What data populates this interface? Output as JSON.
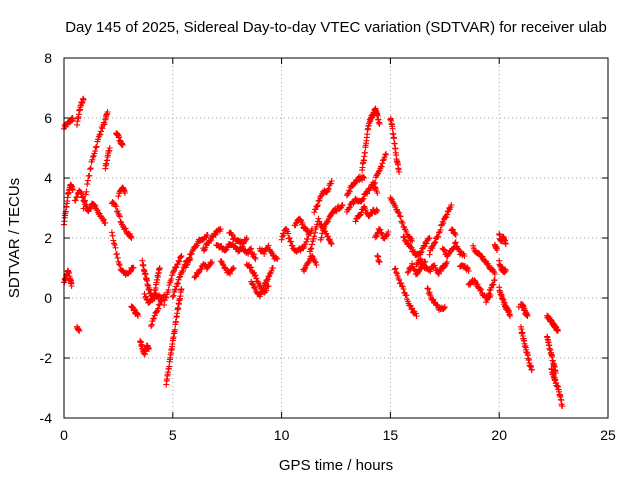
{
  "chart_data": {
    "type": "scatter",
    "title": "Day 145 of 2025, Sidereal Day-to-day VTEC variation (SDTVAR) for receiver ulab",
    "xlabel": "GPS time / hours",
    "ylabel": "SDTVAR / TECUs",
    "xlim": [
      0,
      25
    ],
    "ylim": [
      -4,
      8
    ],
    "xticks": [
      "0",
      "5",
      "10",
      "15",
      "20",
      "25"
    ],
    "yticks": [
      "-4",
      "-2",
      "0",
      "2",
      "4",
      "6",
      "8"
    ],
    "grid": true,
    "marker": "+",
    "marker_color": "#ff0000",
    "tracks": [
      [
        [
          0.0,
          5.7
        ],
        [
          0.15,
          5.8
        ],
        [
          0.3,
          5.9
        ],
        [
          0.4,
          6.0
        ]
      ],
      [
        [
          0.0,
          0.5
        ],
        [
          0.1,
          0.7
        ],
        [
          0.2,
          0.9
        ],
        [
          0.3,
          0.6
        ],
        [
          0.35,
          0.4
        ]
      ],
      [
        [
          0.0,
          2.5
        ],
        [
          0.1,
          3.0
        ],
        [
          0.2,
          3.5
        ],
        [
          0.3,
          3.8
        ],
        [
          0.4,
          3.6
        ]
      ],
      [
        [
          0.6,
          -1.0
        ],
        [
          0.7,
          -1.1
        ]
      ],
      [
        [
          0.5,
          3.2
        ],
        [
          0.7,
          3.6
        ],
        [
          0.9,
          3.3
        ],
        [
          1.1,
          2.9
        ],
        [
          1.3,
          3.1
        ],
        [
          1.5,
          3.0
        ],
        [
          1.7,
          2.7
        ],
        [
          1.9,
          2.5
        ]
      ],
      [
        [
          0.9,
          3.0
        ],
        [
          1.1,
          3.9
        ],
        [
          1.3,
          4.6
        ],
        [
          1.5,
          5.1
        ],
        [
          1.7,
          5.6
        ],
        [
          1.9,
          5.9
        ],
        [
          2.0,
          6.2
        ]
      ],
      [
        [
          0.6,
          5.8
        ],
        [
          0.7,
          6.2
        ],
        [
          0.8,
          6.5
        ],
        [
          0.9,
          6.6
        ]
      ],
      [
        [
          1.9,
          4.3
        ],
        [
          2.0,
          4.7
        ],
        [
          2.1,
          5.0
        ]
      ],
      [
        [
          2.4,
          5.5
        ],
        [
          2.5,
          5.4
        ],
        [
          2.6,
          5.2
        ],
        [
          2.7,
          5.1
        ]
      ],
      [
        [
          2.2,
          3.2
        ],
        [
          2.4,
          3.0
        ],
        [
          2.6,
          2.6
        ],
        [
          2.8,
          2.3
        ],
        [
          3.0,
          2.1
        ],
        [
          3.1,
          2.0
        ]
      ],
      [
        [
          2.2,
          2.2
        ],
        [
          2.4,
          1.5
        ],
        [
          2.6,
          1.0
        ],
        [
          2.8,
          0.8
        ],
        [
          3.0,
          0.9
        ],
        [
          3.2,
          1.0
        ]
      ],
      [
        [
          2.5,
          3.4
        ],
        [
          2.7,
          3.7
        ],
        [
          2.8,
          3.5
        ]
      ],
      [
        [
          3.1,
          -0.3
        ],
        [
          3.2,
          -0.4
        ],
        [
          3.3,
          -0.5
        ],
        [
          3.4,
          -0.6
        ]
      ],
      [
        [
          3.5,
          -1.4
        ],
        [
          3.6,
          -1.7
        ],
        [
          3.7,
          -1.9
        ],
        [
          3.8,
          -1.6
        ],
        [
          3.9,
          -1.7
        ]
      ],
      [
        [
          3.6,
          1.2
        ],
        [
          3.7,
          0.9
        ],
        [
          3.8,
          0.6
        ],
        [
          3.9,
          0.3
        ],
        [
          4.0,
          0.1
        ],
        [
          4.1,
          0.0
        ],
        [
          4.2,
          0.3
        ],
        [
          4.3,
          0.7
        ],
        [
          4.4,
          1.0
        ]
      ],
      [
        [
          3.7,
          0.1
        ],
        [
          3.9,
          -0.2
        ],
        [
          4.1,
          0.0
        ],
        [
          4.3,
          0.1
        ],
        [
          4.5,
          -0.1
        ]
      ],
      [
        [
          4.0,
          -0.9
        ],
        [
          4.2,
          -0.5
        ],
        [
          4.4,
          -0.2
        ],
        [
          4.6,
          0.1
        ]
      ],
      [
        [
          4.7,
          -2.9
        ],
        [
          4.8,
          -2.4
        ],
        [
          4.9,
          -1.9
        ],
        [
          5.0,
          -1.4
        ],
        [
          5.1,
          -1.0
        ],
        [
          5.2,
          -0.5
        ],
        [
          5.3,
          -0.1
        ],
        [
          5.4,
          0.3
        ]
      ],
      [
        [
          4.6,
          -0.2
        ],
        [
          4.8,
          0.3
        ],
        [
          5.0,
          0.8
        ],
        [
          5.2,
          1.1
        ],
        [
          5.4,
          1.4
        ]
      ],
      [
        [
          5.0,
          0.0
        ],
        [
          5.2,
          0.5
        ],
        [
          5.4,
          0.8
        ],
        [
          5.6,
          1.2
        ],
        [
          5.8,
          1.3
        ]
      ],
      [
        [
          5.6,
          1.0
        ],
        [
          5.8,
          1.4
        ],
        [
          6.0,
          1.7
        ],
        [
          6.2,
          1.9
        ],
        [
          6.4,
          2.0
        ],
        [
          6.6,
          2.1
        ]
      ],
      [
        [
          6.0,
          0.7
        ],
        [
          6.2,
          0.9
        ],
        [
          6.4,
          1.1
        ],
        [
          6.6,
          1.0
        ],
        [
          6.8,
          1.2
        ]
      ],
      [
        [
          6.4,
          1.6
        ],
        [
          6.6,
          1.8
        ],
        [
          6.8,
          2.0
        ],
        [
          7.0,
          2.2
        ],
        [
          7.2,
          2.3
        ]
      ],
      [
        [
          7.2,
          1.2
        ],
        [
          7.4,
          1.0
        ],
        [
          7.6,
          0.8
        ],
        [
          7.8,
          1.0
        ]
      ],
      [
        [
          7.0,
          1.8
        ],
        [
          7.2,
          1.7
        ],
        [
          7.4,
          1.6
        ],
        [
          7.6,
          1.8
        ],
        [
          7.8,
          1.7
        ],
        [
          8.0,
          1.6
        ],
        [
          8.2,
          1.7
        ],
        [
          8.4,
          1.5
        ],
        [
          8.6,
          1.6
        ],
        [
          8.8,
          1.3
        ]
      ],
      [
        [
          7.6,
          2.2
        ],
        [
          7.8,
          2.0
        ],
        [
          8.0,
          1.9
        ],
        [
          8.2,
          1.8
        ],
        [
          8.4,
          2.0
        ]
      ],
      [
        [
          8.4,
          1.1
        ],
        [
          8.6,
          1.0
        ],
        [
          8.8,
          0.7
        ],
        [
          9.0,
          0.4
        ],
        [
          9.2,
          0.2
        ],
        [
          9.4,
          0.4
        ]
      ],
      [
        [
          8.6,
          0.5
        ],
        [
          8.8,
          0.3
        ],
        [
          9.0,
          0.1
        ],
        [
          9.2,
          0.4
        ],
        [
          9.4,
          0.7
        ],
        [
          9.6,
          1.0
        ]
      ],
      [
        [
          9.0,
          1.6
        ],
        [
          9.2,
          1.5
        ],
        [
          9.4,
          1.7
        ],
        [
          9.6,
          1.4
        ],
        [
          9.8,
          1.3
        ]
      ],
      [
        [
          10.0,
          2.0
        ],
        [
          10.2,
          2.3
        ],
        [
          10.4,
          1.9
        ],
        [
          10.6,
          1.6
        ],
        [
          10.8,
          1.6
        ],
        [
          11.0,
          1.7
        ],
        [
          11.2,
          2.0
        ],
        [
          11.4,
          2.3
        ]
      ],
      [
        [
          10.6,
          2.4
        ],
        [
          10.8,
          2.7
        ],
        [
          11.0,
          2.4
        ],
        [
          11.2,
          2.2
        ]
      ],
      [
        [
          11.0,
          0.9
        ],
        [
          11.2,
          1.2
        ],
        [
          11.4,
          1.4
        ],
        [
          11.6,
          1.1
        ]
      ],
      [
        [
          11.3,
          1.5
        ],
        [
          11.5,
          2.1
        ],
        [
          11.7,
          2.6
        ],
        [
          11.9,
          2.3
        ],
        [
          12.1,
          2.1
        ],
        [
          12.3,
          1.8
        ]
      ],
      [
        [
          11.5,
          2.9
        ],
        [
          11.7,
          3.2
        ],
        [
          11.9,
          3.5
        ],
        [
          12.1,
          3.6
        ],
        [
          12.3,
          3.9
        ]
      ],
      [
        [
          11.8,
          2.0
        ],
        [
          12.0,
          2.4
        ],
        [
          12.2,
          2.7
        ],
        [
          12.4,
          2.9
        ],
        [
          12.6,
          3.0
        ],
        [
          12.8,
          3.1
        ]
      ],
      [
        [
          13.0,
          3.4
        ],
        [
          13.2,
          3.7
        ],
        [
          13.4,
          3.9
        ],
        [
          13.6,
          4.0
        ],
        [
          13.8,
          4.0
        ]
      ],
      [
        [
          13.0,
          2.9
        ],
        [
          13.2,
          3.1
        ],
        [
          13.4,
          3.3
        ],
        [
          13.6,
          3.2
        ],
        [
          13.8,
          3.4
        ],
        [
          14.0,
          3.6
        ],
        [
          14.2,
          3.8
        ],
        [
          14.4,
          3.5
        ]
      ],
      [
        [
          13.4,
          2.6
        ],
        [
          13.6,
          2.8
        ],
        [
          13.8,
          3.0
        ],
        [
          14.0,
          2.7
        ],
        [
          14.2,
          2.9
        ],
        [
          14.4,
          2.9
        ]
      ],
      [
        [
          13.7,
          4.3
        ],
        [
          13.8,
          4.7
        ],
        [
          13.9,
          5.3
        ],
        [
          14.0,
          5.8
        ],
        [
          14.1,
          6.0
        ],
        [
          14.2,
          6.1
        ],
        [
          14.3,
          6.3
        ],
        [
          14.4,
          6.1
        ],
        [
          14.5,
          5.8
        ]
      ],
      [
        [
          14.2,
          3.7
        ],
        [
          14.4,
          4.1
        ],
        [
          14.6,
          4.4
        ],
        [
          14.8,
          4.8
        ]
      ],
      [
        [
          14.3,
          2.0
        ],
        [
          14.5,
          2.3
        ],
        [
          14.7,
          2.0
        ],
        [
          14.9,
          2.2
        ]
      ],
      [
        [
          14.4,
          1.4
        ],
        [
          14.5,
          1.2
        ]
      ],
      [
        [
          15.0,
          6.0
        ],
        [
          15.1,
          5.6
        ],
        [
          15.2,
          5.1
        ],
        [
          15.3,
          4.6
        ],
        [
          15.4,
          4.2
        ]
      ],
      [
        [
          15.0,
          3.3
        ],
        [
          15.2,
          3.1
        ],
        [
          15.4,
          2.8
        ],
        [
          15.6,
          2.4
        ],
        [
          15.8,
          2.1
        ],
        [
          16.0,
          1.9
        ]
      ],
      [
        [
          15.2,
          1.0
        ],
        [
          15.4,
          0.6
        ],
        [
          15.6,
          0.3
        ],
        [
          15.8,
          -0.1
        ],
        [
          16.0,
          -0.4
        ],
        [
          16.2,
          -0.6
        ]
      ],
      [
        [
          15.6,
          2.0
        ],
        [
          15.8,
          1.8
        ],
        [
          16.0,
          1.6
        ],
        [
          16.2,
          1.4
        ],
        [
          16.4,
          1.5
        ],
        [
          16.6,
          1.8
        ],
        [
          16.8,
          2.0
        ]
      ],
      [
        [
          15.8,
          0.9
        ],
        [
          16.0,
          1.1
        ],
        [
          16.2,
          0.8
        ],
        [
          16.4,
          1.0
        ],
        [
          16.6,
          1.2
        ]
      ],
      [
        [
          16.2,
          1.1
        ],
        [
          16.4,
          1.3
        ],
        [
          16.6,
          1.0
        ],
        [
          16.8,
          0.9
        ],
        [
          17.0,
          1.1
        ],
        [
          17.2,
          0.8
        ],
        [
          17.4,
          1.0
        ],
        [
          17.6,
          1.2
        ]
      ],
      [
        [
          16.7,
          0.3
        ],
        [
          16.9,
          0.0
        ],
        [
          17.1,
          -0.2
        ],
        [
          17.3,
          -0.4
        ],
        [
          17.5,
          -0.3
        ]
      ],
      [
        [
          16.8,
          1.5
        ],
        [
          17.0,
          1.8
        ],
        [
          17.2,
          2.1
        ],
        [
          17.4,
          2.5
        ],
        [
          17.6,
          2.8
        ],
        [
          17.8,
          3.1
        ]
      ],
      [
        [
          17.4,
          1.7
        ],
        [
          17.6,
          1.4
        ],
        [
          17.8,
          1.6
        ],
        [
          18.0,
          1.8
        ],
        [
          18.2,
          1.5
        ],
        [
          18.4,
          1.4
        ]
      ],
      [
        [
          17.8,
          2.3
        ],
        [
          18.0,
          2.1
        ]
      ],
      [
        [
          18.2,
          1.0
        ],
        [
          18.4,
          1.1
        ],
        [
          18.6,
          0.9
        ]
      ],
      [
        [
          18.6,
          0.4
        ],
        [
          18.8,
          0.6
        ],
        [
          19.0,
          0.4
        ],
        [
          19.2,
          0.2
        ],
        [
          19.4,
          0.0
        ],
        [
          19.6,
          0.1
        ]
      ],
      [
        [
          18.8,
          1.7
        ],
        [
          19.0,
          1.5
        ],
        [
          19.2,
          1.4
        ],
        [
          19.4,
          1.2
        ],
        [
          19.6,
          1.0
        ],
        [
          19.8,
          0.8
        ]
      ],
      [
        [
          19.4,
          -0.1
        ],
        [
          19.6,
          0.3
        ],
        [
          19.8,
          0.6
        ]
      ],
      [
        [
          19.8,
          1.8
        ],
        [
          19.9,
          1.6
        ]
      ],
      [
        [
          20.0,
          2.1
        ],
        [
          20.1,
          1.9
        ],
        [
          20.2,
          2.0
        ],
        [
          20.3,
          1.8
        ]
      ],
      [
        [
          20.0,
          1.2
        ],
        [
          20.1,
          1.0
        ],
        [
          20.2,
          0.9
        ],
        [
          20.3,
          0.9
        ]
      ],
      [
        [
          20.0,
          0.3
        ],
        [
          20.1,
          0.1
        ],
        [
          20.2,
          -0.1
        ],
        [
          20.3,
          -0.3
        ],
        [
          20.4,
          -0.4
        ],
        [
          20.5,
          -0.6
        ]
      ],
      [
        [
          20.9,
          -0.3
        ]
      ],
      [
        [
          21.0,
          -0.2
        ],
        [
          21.1,
          -0.3
        ],
        [
          21.2,
          -0.5
        ],
        [
          21.3,
          -0.6
        ]
      ],
      [
        [
          21.0,
          -1.0
        ],
        [
          21.1,
          -1.3
        ],
        [
          21.2,
          -1.6
        ],
        [
          21.3,
          -1.9
        ],
        [
          21.4,
          -2.2
        ],
        [
          21.5,
          -2.4
        ]
      ],
      [
        [
          22.2,
          -0.6
        ],
        [
          22.3,
          -0.7
        ],
        [
          22.4,
          -0.8
        ],
        [
          22.5,
          -0.9
        ],
        [
          22.6,
          -1.0
        ],
        [
          22.7,
          -1.1
        ]
      ],
      [
        [
          22.2,
          -1.3
        ],
        [
          22.3,
          -1.6
        ],
        [
          22.4,
          -1.9
        ],
        [
          22.5,
          -2.2
        ],
        [
          22.6,
          -2.5
        ]
      ],
      [
        [
          22.4,
          -2.4
        ],
        [
          22.5,
          -2.6
        ],
        [
          22.6,
          -2.8
        ],
        [
          22.7,
          -3.0
        ],
        [
          22.8,
          -3.3
        ],
        [
          22.9,
          -3.6
        ]
      ]
    ]
  }
}
